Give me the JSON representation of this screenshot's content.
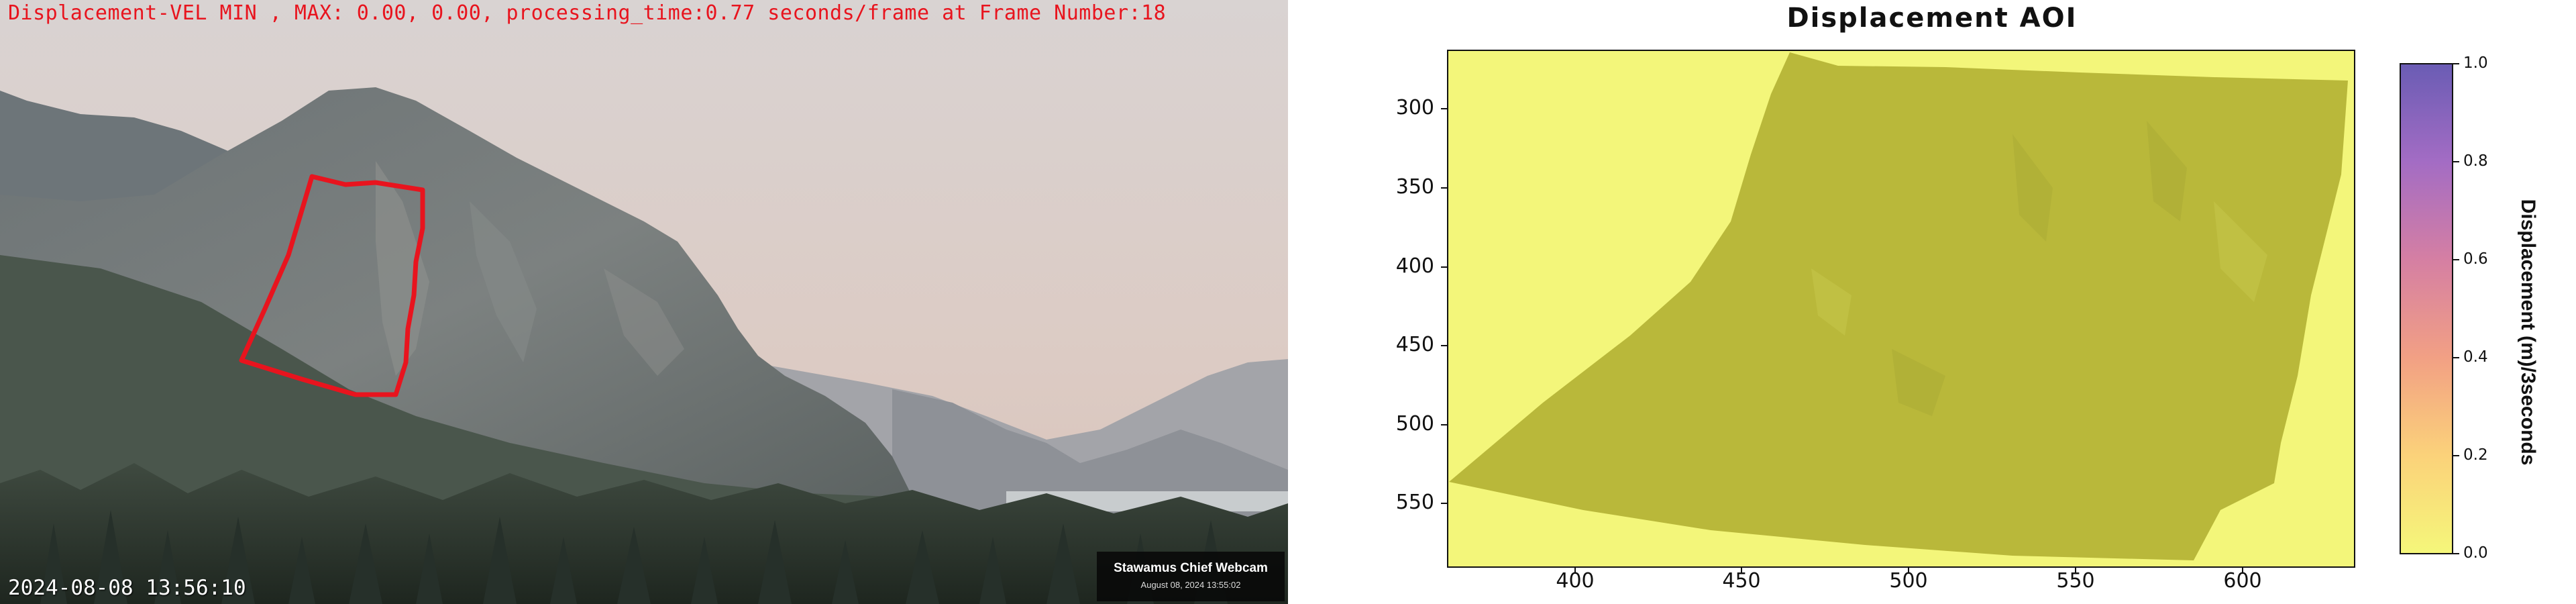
{
  "webcam": {
    "overlay_text": "Displacement-VEL MIN , MAX: 0.00, 0.00, processing_time:0.77 seconds/frame at Frame Number:18",
    "timestamp": "2024-08-08 13:56:10",
    "badge_title": "Stawamus Chief Webcam",
    "badge_date": "August 08, 2024 13:55:02",
    "roi_color": "#e8141e"
  },
  "plot": {
    "title": "Displacement AOI",
    "colorbar_label": "Displacement (m)/3seconds",
    "colormap": [
      "#f5f77a",
      "#fbd27a",
      "#f2a084",
      "#d57fa3",
      "#a36cc4",
      "#6a5cb4"
    ],
    "fill_color": "#b9b83a",
    "background_color": "#f3f67a"
  },
  "chart_data": {
    "type": "heatmap",
    "title": "Displacement AOI",
    "xlabel": "",
    "ylabel": "",
    "xlim": [
      362,
      634
    ],
    "ylim": [
      598,
      270
    ],
    "x_ticks": [
      400,
      450,
      500,
      550,
      600
    ],
    "y_ticks": [
      300,
      350,
      400,
      450,
      500,
      550
    ],
    "colorbar": {
      "label": "Displacement (m)/3seconds",
      "range": [
        0.0,
        1.0
      ],
      "ticks": [
        "0.0",
        "0.2",
        "0.4",
        "0.6",
        "0.8",
        "1.0"
      ]
    },
    "displacement_min": 0.0,
    "displacement_max": 0.0
  }
}
